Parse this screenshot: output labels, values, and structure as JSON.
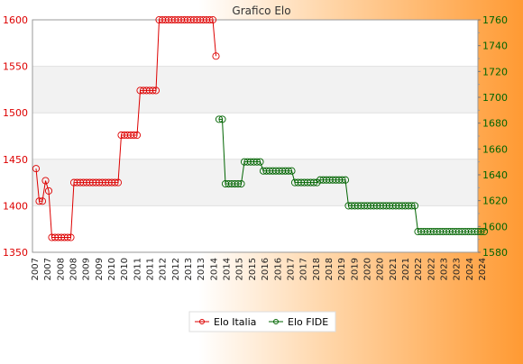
{
  "chart_data": {
    "type": "line",
    "title": "Grafico Elo",
    "left_axis": {
      "ylim": [
        1350,
        1600
      ],
      "ticks": [
        1350,
        1400,
        1450,
        1500,
        1550,
        1600
      ]
    },
    "right_axis": {
      "ylim": [
        1580,
        1760
      ],
      "ticks": [
        1580,
        1600,
        1620,
        1640,
        1660,
        1680,
        1700,
        1720,
        1740,
        1760
      ]
    },
    "x_count": 143,
    "x_tick_labels": [
      "2007",
      "2007",
      "2008",
      "2008",
      "2009",
      "2009",
      "2010",
      "2010",
      "2011",
      "2011",
      "2012",
      "2012",
      "2013",
      "2013",
      "2014",
      "2014",
      "2015",
      "2015",
      "2016",
      "2016",
      "2017",
      "2017",
      "2018",
      "2018",
      "2019",
      "2019",
      "2020",
      "2020",
      "2021",
      "2021",
      "2022",
      "2022",
      "2023",
      "2023",
      "2024",
      "2024"
    ],
    "legend_position": "bottom-center",
    "series": [
      {
        "name": "Elo Italia",
        "color": "#dd0000",
        "axis": "left",
        "points": [
          [
            0,
            1440
          ],
          [
            1,
            1405
          ],
          [
            2,
            1405
          ],
          [
            3,
            1427
          ],
          [
            4,
            1416
          ],
          [
            5,
            1366
          ],
          [
            6,
            1366
          ],
          [
            7,
            1366
          ],
          [
            8,
            1366
          ],
          [
            9,
            1366
          ],
          [
            10,
            1366
          ],
          [
            11,
            1366
          ],
          [
            12,
            1425
          ],
          [
            13,
            1425
          ],
          [
            14,
            1425
          ],
          [
            15,
            1425
          ],
          [
            16,
            1425
          ],
          [
            17,
            1425
          ],
          [
            18,
            1425
          ],
          [
            19,
            1425
          ],
          [
            20,
            1425
          ],
          [
            21,
            1425
          ],
          [
            22,
            1425
          ],
          [
            23,
            1425
          ],
          [
            24,
            1425
          ],
          [
            25,
            1425
          ],
          [
            26,
            1425
          ],
          [
            27,
            1476
          ],
          [
            28,
            1476
          ],
          [
            29,
            1476
          ],
          [
            30,
            1476
          ],
          [
            31,
            1476
          ],
          [
            32,
            1476
          ],
          [
            33,
            1524
          ],
          [
            34,
            1524
          ],
          [
            35,
            1524
          ],
          [
            36,
            1524
          ],
          [
            37,
            1524
          ],
          [
            38,
            1524
          ],
          [
            39,
            1600
          ],
          [
            40,
            1600
          ],
          [
            41,
            1600
          ],
          [
            42,
            1600
          ],
          [
            43,
            1600
          ],
          [
            44,
            1600
          ],
          [
            45,
            1600
          ],
          [
            46,
            1600
          ],
          [
            47,
            1600
          ],
          [
            48,
            1600
          ],
          [
            49,
            1600
          ],
          [
            50,
            1600
          ],
          [
            51,
            1600
          ],
          [
            52,
            1600
          ],
          [
            53,
            1600
          ],
          [
            54,
            1600
          ],
          [
            55,
            1600
          ],
          [
            56,
            1600
          ],
          [
            57,
            1561
          ]
        ]
      },
      {
        "name": "Elo FIDE",
        "color": "#006400",
        "axis": "right",
        "points": [
          [
            58,
            1683
          ],
          [
            59,
            1683
          ],
          [
            60,
            1633
          ],
          [
            61,
            1633
          ],
          [
            62,
            1633
          ],
          [
            63,
            1633
          ],
          [
            64,
            1633
          ],
          [
            65,
            1633
          ],
          [
            66,
            1650
          ],
          [
            67,
            1650
          ],
          [
            68,
            1650
          ],
          [
            69,
            1650
          ],
          [
            70,
            1650
          ],
          [
            71,
            1650
          ],
          [
            72,
            1643
          ],
          [
            73,
            1643
          ],
          [
            74,
            1643
          ],
          [
            75,
            1643
          ],
          [
            76,
            1643
          ],
          [
            77,
            1643
          ],
          [
            78,
            1643
          ],
          [
            79,
            1643
          ],
          [
            80,
            1643
          ],
          [
            81,
            1643
          ],
          [
            82,
            1634
          ],
          [
            83,
            1634
          ],
          [
            84,
            1634
          ],
          [
            85,
            1634
          ],
          [
            86,
            1634
          ],
          [
            87,
            1634
          ],
          [
            88,
            1634
          ],
          [
            89,
            1634
          ],
          [
            90,
            1636
          ],
          [
            91,
            1636
          ],
          [
            92,
            1636
          ],
          [
            93,
            1636
          ],
          [
            94,
            1636
          ],
          [
            95,
            1636
          ],
          [
            96,
            1636
          ],
          [
            97,
            1636
          ],
          [
            98,
            1636
          ],
          [
            99,
            1616
          ],
          [
            100,
            1616
          ],
          [
            101,
            1616
          ],
          [
            102,
            1616
          ],
          [
            103,
            1616
          ],
          [
            104,
            1616
          ],
          [
            105,
            1616
          ],
          [
            106,
            1616
          ],
          [
            107,
            1616
          ],
          [
            108,
            1616
          ],
          [
            109,
            1616
          ],
          [
            110,
            1616
          ],
          [
            111,
            1616
          ],
          [
            112,
            1616
          ],
          [
            113,
            1616
          ],
          [
            114,
            1616
          ],
          [
            115,
            1616
          ],
          [
            116,
            1616
          ],
          [
            117,
            1616
          ],
          [
            118,
            1616
          ],
          [
            119,
            1616
          ],
          [
            120,
            1616
          ],
          [
            121,
            1596
          ],
          [
            122,
            1596
          ],
          [
            123,
            1596
          ],
          [
            124,
            1596
          ],
          [
            125,
            1596
          ],
          [
            126,
            1596
          ],
          [
            127,
            1596
          ],
          [
            128,
            1596
          ],
          [
            129,
            1596
          ],
          [
            130,
            1596
          ],
          [
            131,
            1596
          ],
          [
            132,
            1596
          ],
          [
            133,
            1596
          ],
          [
            134,
            1596
          ],
          [
            135,
            1596
          ],
          [
            136,
            1596
          ],
          [
            137,
            1596
          ],
          [
            138,
            1596
          ],
          [
            139,
            1596
          ],
          [
            140,
            1596
          ],
          [
            141,
            1596
          ],
          [
            142,
            1596
          ]
        ]
      }
    ]
  }
}
